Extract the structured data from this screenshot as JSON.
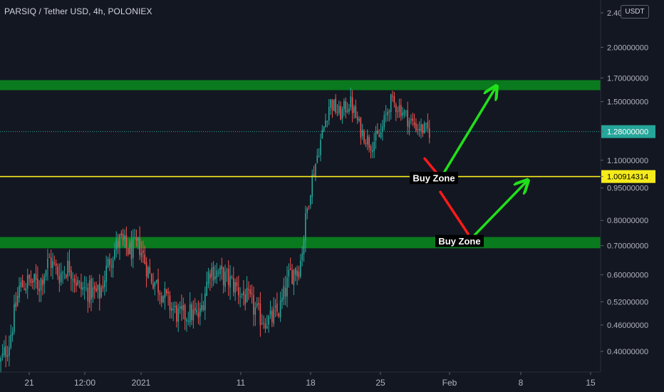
{
  "header": {
    "symbol_title": "PARSIQ / Tether USD, 4h, POLONIEX",
    "currency_badge": "USDT"
  },
  "colors": {
    "background": "#131722",
    "up_candle": "#26a69a",
    "down_candle": "#ef5350",
    "zone_fill": "#0a7a1e",
    "buy_line": "#f5eb1b",
    "arrow_green": "#21e01a",
    "arrow_red": "#ff1a1a",
    "axis_text": "#b2b5be"
  },
  "chart_data": {
    "type": "candlestick",
    "title": "PARSIQ / Tether USD, 4h, POLONIEX",
    "y_scale": "log",
    "y_range": [
      0.35,
      2.45
    ],
    "y_tick_labels": [
      "2.40000000",
      "2.00000000",
      "1.70000000",
      "1.50000000",
      "1.28000000",
      "1.10000000",
      "1.00914314",
      "0.95000000",
      "0.80000000",
      "0.70000000",
      "0.60000000",
      "0.52000000",
      "0.46000000",
      "0.40000000"
    ],
    "x_tick_labels": [
      "21",
      "12:00",
      "2021",
      "11",
      "18",
      "25",
      "Feb",
      "8",
      "15"
    ],
    "x_range_days": [
      "2020-12-18",
      "2021-02-16"
    ],
    "last_price_label": "1.28000000",
    "buy_line_price_label": "1.00914314",
    "buy_line_value": 1.00914314,
    "resistance_zone": [
      1.6,
      1.7
    ],
    "support_zone": [
      0.68,
      0.73
    ],
    "annotations": [
      "Buy Zone",
      "Buy Zone"
    ],
    "price_path": [
      [
        "2020-12-18",
        0.37
      ],
      [
        "2020-12-19",
        0.42
      ],
      [
        "2020-12-20",
        0.56
      ],
      [
        "2020-12-21",
        0.58
      ],
      [
        "2020-12-22",
        0.57
      ],
      [
        "2020-12-23",
        0.65
      ],
      [
        "2020-12-24",
        0.6
      ],
      [
        "2020-12-25",
        0.63
      ],
      [
        "2020-12-26",
        0.56
      ],
      [
        "2020-12-27",
        0.55
      ],
      [
        "2020-12-28",
        0.54
      ],
      [
        "2020-12-29",
        0.65
      ],
      [
        "2020-12-30",
        0.72
      ],
      [
        "2020-12-31",
        0.68
      ],
      [
        "2021-01-01",
        0.7
      ],
      [
        "2021-01-02",
        0.6
      ],
      [
        "2021-01-03",
        0.56
      ],
      [
        "2021-01-04",
        0.51
      ],
      [
        "2021-01-05",
        0.48
      ],
      [
        "2021-01-06",
        0.49
      ],
      [
        "2021-01-07",
        0.48
      ],
      [
        "2021-01-08",
        0.62
      ],
      [
        "2021-01-09",
        0.6
      ],
      [
        "2021-01-10",
        0.58
      ],
      [
        "2021-01-11",
        0.55
      ],
      [
        "2021-01-12",
        0.52
      ],
      [
        "2021-01-13",
        0.48
      ],
      [
        "2021-01-14",
        0.47
      ],
      [
        "2021-01-15",
        0.5
      ],
      [
        "2021-01-16",
        0.6
      ],
      [
        "2021-01-17",
        0.63
      ],
      [
        "2021-01-18",
        0.95
      ],
      [
        "2021-01-19",
        1.2
      ],
      [
        "2021-01-20",
        1.5
      ],
      [
        "2021-01-21",
        1.4
      ],
      [
        "2021-01-22",
        1.5
      ],
      [
        "2021-01-23",
        1.3
      ],
      [
        "2021-01-24",
        1.2
      ],
      [
        "2021-01-25",
        1.25
      ],
      [
        "2021-01-26",
        1.5
      ],
      [
        "2021-01-27",
        1.45
      ],
      [
        "2021-01-28",
        1.35
      ],
      [
        "2021-01-29",
        1.3
      ],
      [
        "2021-01-30",
        1.28
      ]
    ]
  }
}
